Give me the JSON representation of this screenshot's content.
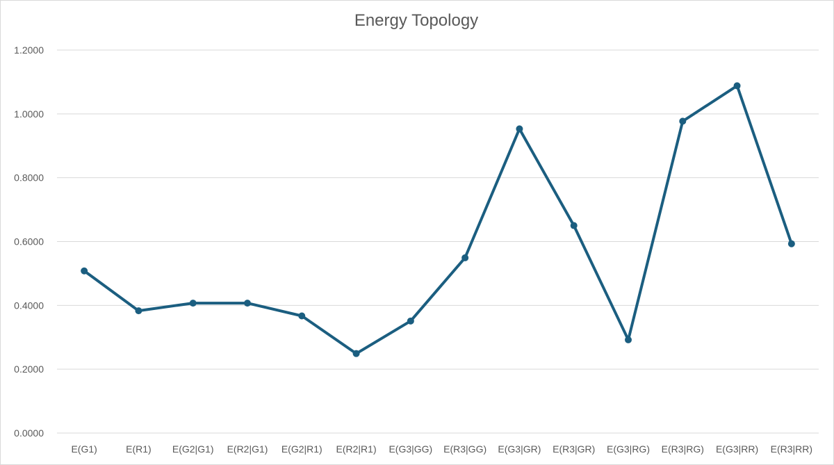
{
  "chart_data": {
    "type": "line",
    "title": "Energy Topology",
    "xlabel": "",
    "ylabel": "",
    "categories": [
      "E(G1)",
      "E(R1)",
      "E(G2|G1)",
      "E(R2|G1)",
      "E(G2|R1)",
      "E(R2|R1)",
      "E(G3|GG)",
      "E(R3|GG)",
      "E(G3|GR)",
      "E(R3|GR)",
      "E(G3|RG)",
      "E(R3|RG)",
      "E(G3|RR)",
      "E(R3|RR)"
    ],
    "series": [
      {
        "values": [
          0.508,
          0.383,
          0.407,
          0.407,
          0.367,
          0.249,
          0.351,
          0.549,
          0.953,
          0.65,
          0.292,
          0.977,
          1.088,
          0.593
        ],
        "color": "#1b5e80"
      }
    ],
    "ylim": [
      0,
      1.2
    ],
    "yticks": [
      0.0,
      0.2,
      0.4,
      0.6,
      0.8,
      1.0,
      1.2
    ],
    "ytick_labels": [
      "0.0000",
      "0.2000",
      "0.4000",
      "0.6000",
      "0.8000",
      "1.0000",
      "1.2000"
    ],
    "grid": true,
    "legend": "none"
  }
}
